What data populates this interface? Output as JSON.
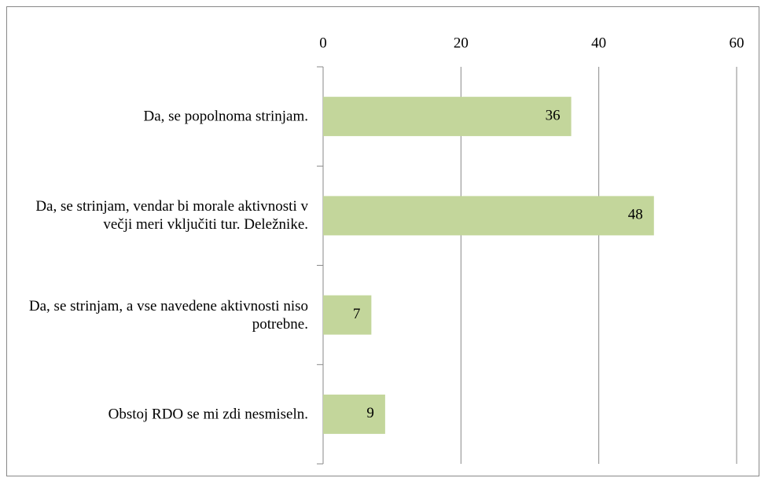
{
  "chart_data": {
    "type": "bar",
    "orientation": "horizontal",
    "categories": [
      "Da, se popolnoma strinjam.",
      "Da, se strinjam, vendar bi morale aktivnosti v večji meri vključiti tur. Deležnike.",
      "Da, se strinjam, a vse navedene aktivnosti niso potrebne.",
      "Obstoj RDO se mi zdi nesmiseln."
    ],
    "values": [
      36,
      48,
      7,
      9
    ],
    "color": "#c3d69b",
    "xlim": [
      0,
      60
    ],
    "xticks": [
      0,
      20,
      40,
      60
    ],
    "grid": true
  }
}
